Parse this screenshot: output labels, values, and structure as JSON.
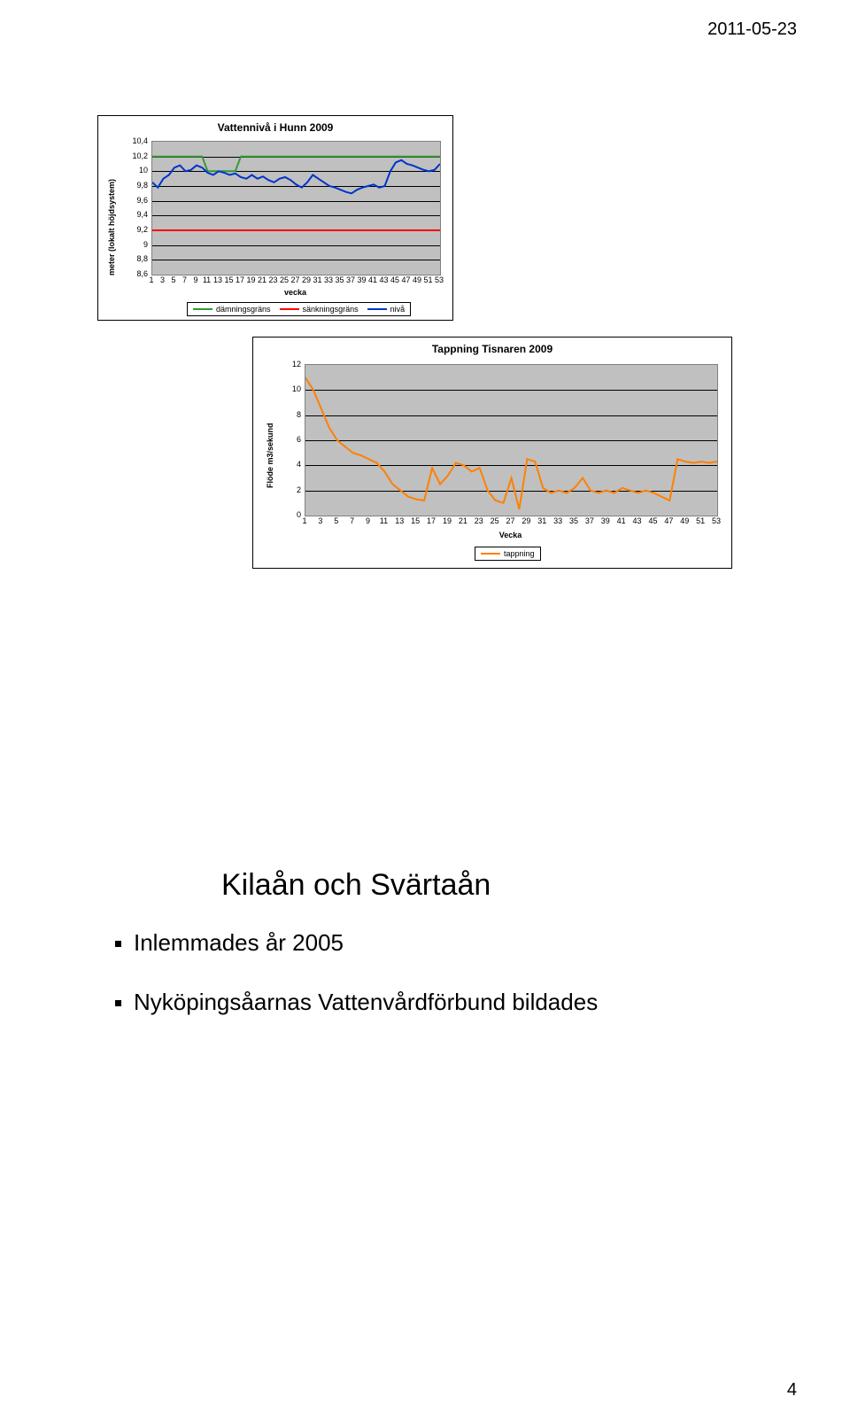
{
  "header": {
    "date": "2011-05-23"
  },
  "footer": {
    "page_number": "4"
  },
  "chart1": {
    "type": "line",
    "title": "Vattennivå i Hunn 2009",
    "ylabel": "meter (lokalt höjdsystem)",
    "xlabel": "vecka",
    "yticks": [
      "8,6",
      "8,8",
      "9",
      "9,2",
      "9,4",
      "9,6",
      "9,8",
      "10",
      "10,2",
      "10,4"
    ],
    "x_ticks": [
      1,
      3,
      5,
      7,
      9,
      11,
      13,
      15,
      17,
      19,
      21,
      23,
      25,
      27,
      29,
      31,
      33,
      35,
      37,
      39,
      41,
      43,
      45,
      47,
      49,
      51,
      53
    ],
    "x_range": [
      1,
      53
    ],
    "y_range": [
      8.6,
      10.4
    ],
    "background_color": "#c0c0c0",
    "grid_color": "#000000",
    "legend": [
      {
        "label": "dämningsgräns",
        "color": "#339933"
      },
      {
        "label": "sänkningsgräns",
        "color": "#ff0000"
      },
      {
        "label": "nivå",
        "color": "#0033cc"
      }
    ],
    "series_damning": {
      "color": "#339933",
      "width": 2,
      "x": [
        1,
        10,
        11,
        16,
        17,
        53
      ],
      "y": [
        10.2,
        10.2,
        10.0,
        10.0,
        10.2,
        10.2
      ]
    },
    "series_sankning": {
      "color": "#ff0000",
      "width": 2,
      "x": [
        1,
        53
      ],
      "y": [
        9.2,
        9.2
      ]
    },
    "series_niva": {
      "color": "#0033cc",
      "width": 2,
      "x": [
        1,
        2,
        3,
        4,
        5,
        6,
        7,
        8,
        9,
        10,
        11,
        12,
        13,
        14,
        15,
        16,
        17,
        18,
        19,
        20,
        21,
        22,
        23,
        24,
        25,
        26,
        27,
        28,
        29,
        30,
        31,
        32,
        33,
        34,
        35,
        36,
        37,
        38,
        39,
        40,
        41,
        42,
        43,
        44,
        45,
        46,
        47,
        48,
        49,
        50,
        51,
        52,
        53
      ],
      "y": [
        9.85,
        9.78,
        9.9,
        9.95,
        10.05,
        10.08,
        10.0,
        10.02,
        10.08,
        10.05,
        9.98,
        9.95,
        10.0,
        9.98,
        9.95,
        9.97,
        9.92,
        9.9,
        9.95,
        9.9,
        9.93,
        9.88,
        9.85,
        9.9,
        9.92,
        9.88,
        9.82,
        9.78,
        9.85,
        9.95,
        9.9,
        9.85,
        9.8,
        9.78,
        9.75,
        9.72,
        9.7,
        9.75,
        9.78,
        9.8,
        9.82,
        9.78,
        9.8,
        10.0,
        10.12,
        10.15,
        10.1,
        10.08,
        10.05,
        10.02,
        10.0,
        10.02,
        10.1
      ]
    }
  },
  "chart2": {
    "type": "line",
    "title": "Tappning Tisnaren 2009",
    "ylabel": "Flöde m3/sekund",
    "xlabel": "Vecka",
    "yticks": [
      "0",
      "2",
      "4",
      "6",
      "8",
      "10",
      "12"
    ],
    "x_ticks": [
      1,
      3,
      5,
      7,
      9,
      11,
      13,
      15,
      17,
      19,
      21,
      23,
      25,
      27,
      29,
      31,
      33,
      35,
      37,
      39,
      41,
      43,
      45,
      47,
      49,
      51,
      53
    ],
    "x_range": [
      1,
      53
    ],
    "y_range": [
      0,
      12
    ],
    "background_color": "#c0c0c0",
    "grid_color": "#000000",
    "legend": [
      {
        "label": "tappning",
        "color": "#ff8000"
      }
    ],
    "series_tappning": {
      "color": "#ff8000",
      "width": 2,
      "x": [
        1,
        2,
        3,
        4,
        5,
        6,
        7,
        8,
        9,
        10,
        11,
        12,
        13,
        14,
        15,
        16,
        17,
        18,
        19,
        20,
        21,
        22,
        23,
        24,
        25,
        26,
        27,
        28,
        29,
        30,
        31,
        32,
        33,
        34,
        35,
        36,
        37,
        38,
        39,
        40,
        41,
        42,
        43,
        44,
        45,
        46,
        47,
        48,
        49,
        50,
        51,
        52,
        53
      ],
      "y": [
        11,
        10,
        8.5,
        7,
        6,
        5.5,
        5,
        4.8,
        4.5,
        4.2,
        3.5,
        2.5,
        2,
        1.5,
        1.3,
        1.2,
        3.8,
        2.5,
        3.2,
        4.2,
        4.0,
        3.5,
        3.8,
        2.0,
        1.2,
        1.0,
        3.0,
        0.5,
        4.5,
        4.3,
        2.2,
        1.8,
        2.0,
        1.8,
        2.2,
        3.0,
        2.0,
        1.8,
        2.0,
        1.8,
        2.2,
        2.0,
        1.8,
        2.0,
        1.8,
        1.5,
        1.2,
        4.5,
        4.3,
        4.2,
        4.3,
        4.2,
        4.3
      ]
    }
  },
  "slide": {
    "title": "Kilaån och Svärtaån",
    "bullets": [
      "Inlemmades år 2005",
      "Nyköpingsåarnas Vattenvårdförbund bildades"
    ]
  }
}
